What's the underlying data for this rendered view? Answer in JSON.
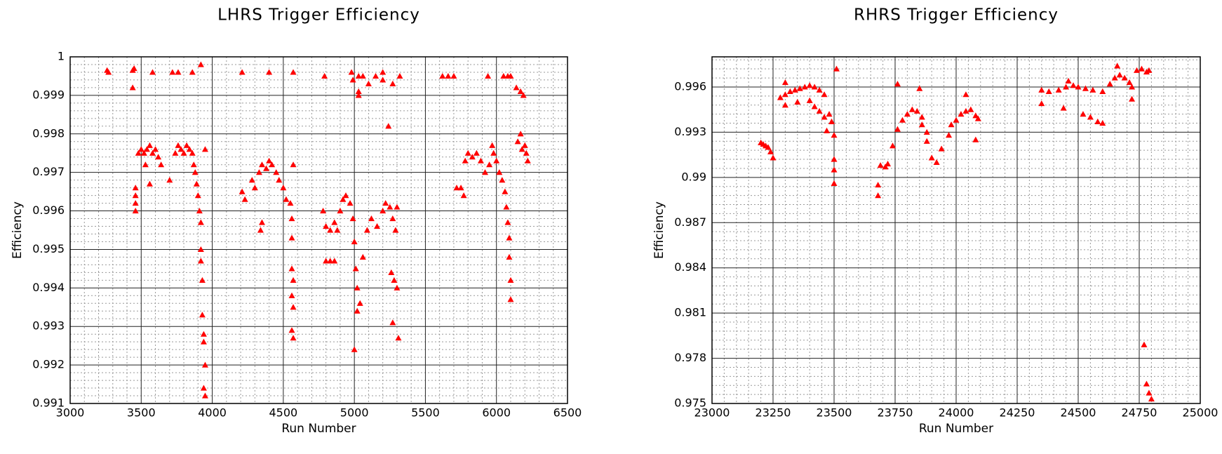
{
  "chart_data": [
    {
      "type": "scatter",
      "title": "LHRS Trigger Efficiency",
      "x_label": "Run Number",
      "y_label": "Efficiency",
      "color": "#ff0000",
      "marker": "triangle",
      "grid": true,
      "minor_divisions": 5,
      "xlim": [
        3000,
        6500
      ],
      "xticks": [
        3000,
        3500,
        4000,
        4500,
        5000,
        5500,
        6000,
        6500
      ],
      "ylim": [
        0.991,
        1
      ],
      "yticks": [
        0.991,
        0.992,
        0.993,
        0.994,
        0.995,
        0.996,
        0.997,
        0.998,
        0.999,
        1
      ],
      "x": [
        3260,
        3270,
        3440,
        3450,
        3440,
        3580,
        3720,
        3760,
        3860,
        3920,
        4210,
        4400,
        4570,
        4790,
        4980,
        4990,
        5030,
        5030,
        5030,
        5060,
        5100,
        5150,
        5200,
        5200,
        5270,
        5320,
        5620,
        5660,
        5700,
        5940,
        6050,
        6080,
        6100,
        6140,
        6170,
        6190,
        5240,
        3480,
        3500,
        3520,
        3540,
        3560,
        3580,
        3600,
        3620,
        3640,
        3530,
        3560,
        3460,
        3460,
        3460,
        3460,
        3700,
        3740,
        3760,
        3780,
        3800,
        3820,
        3840,
        3860,
        3870,
        3880,
        3890,
        3900,
        3910,
        3920,
        3920,
        3920,
        3930,
        3930,
        3940,
        3940,
        3950,
        3940,
        3950,
        3950,
        4210,
        4230,
        4280,
        4300,
        4330,
        4350,
        4380,
        4400,
        4420,
        4450,
        4470,
        4350,
        4340,
        4500,
        4520,
        4550,
        4560,
        4570,
        4560,
        4560,
        4570,
        4560,
        4570,
        4560,
        4570,
        4780,
        4800,
        4830,
        4860,
        4880,
        4800,
        4830,
        4860,
        4900,
        4920,
        4940,
        4970,
        4990,
        5000,
        5010,
        5020,
        5020,
        5040,
        5000,
        5060,
        5090,
        5120,
        5160,
        5200,
        5220,
        5250,
        5270,
        5290,
        5300,
        5260,
        5280,
        5300,
        5270,
        5310,
        5720,
        5750,
        5780,
        5800,
        5830,
        5860,
        5890,
        5920,
        5950,
        5970,
        5980,
        6000,
        6020,
        6040,
        6060,
        6070,
        6080,
        6090,
        6090,
        6100,
        6100,
        6150,
        6170,
        6180,
        6200,
        6210,
        6220,
        5770
      ],
      "values": [
        0.99965,
        0.9996,
        0.99965,
        0.9997,
        0.9992,
        0.9996,
        0.9996,
        0.9996,
        0.9996,
        0.9998,
        0.9996,
        0.9996,
        0.9996,
        0.9995,
        0.9996,
        0.9994,
        0.9995,
        0.9991,
        0.999,
        0.9995,
        0.9993,
        0.9995,
        0.9996,
        0.9994,
        0.9993,
        0.9995,
        0.9995,
        0.9995,
        0.9995,
        0.9995,
        0.9995,
        0.9995,
        0.9995,
        0.9992,
        0.9991,
        0.999,
        0.9982,
        0.9975,
        0.9976,
        0.9975,
        0.9976,
        0.9977,
        0.9975,
        0.9976,
        0.9974,
        0.9972,
        0.9972,
        0.9967,
        0.9966,
        0.9964,
        0.9962,
        0.996,
        0.9968,
        0.9975,
        0.9977,
        0.9976,
        0.9975,
        0.9977,
        0.9976,
        0.9975,
        0.9972,
        0.997,
        0.9967,
        0.9964,
        0.996,
        0.9957,
        0.995,
        0.9947,
        0.9942,
        0.9933,
        0.9928,
        0.9926,
        0.992,
        0.9914,
        0.9912,
        0.9976,
        0.9965,
        0.9963,
        0.9968,
        0.9966,
        0.997,
        0.9972,
        0.9971,
        0.9973,
        0.9972,
        0.997,
        0.9968,
        0.9957,
        0.9955,
        0.9966,
        0.9963,
        0.9962,
        0.9958,
        0.9972,
        0.9953,
        0.9945,
        0.9942,
        0.9938,
        0.9935,
        0.9929,
        0.9927,
        0.996,
        0.9956,
        0.9955,
        0.9957,
        0.9955,
        0.9947,
        0.9947,
        0.9947,
        0.996,
        0.9963,
        0.9964,
        0.9962,
        0.9958,
        0.9952,
        0.9945,
        0.994,
        0.9934,
        0.9936,
        0.9924,
        0.9948,
        0.9955,
        0.9958,
        0.9956,
        0.996,
        0.9962,
        0.9961,
        0.9958,
        0.9955,
        0.9961,
        0.9944,
        0.9942,
        0.994,
        0.9931,
        0.9927,
        0.9966,
        0.9966,
        0.9973,
        0.9975,
        0.9974,
        0.9975,
        0.9973,
        0.997,
        0.9972,
        0.9977,
        0.9975,
        0.9973,
        0.997,
        0.9968,
        0.9965,
        0.9961,
        0.9957,
        0.9953,
        0.9948,
        0.9942,
        0.9937,
        0.9978,
        0.998,
        0.9976,
        0.9977,
        0.9975,
        0.9973,
        0.9964
      ]
    },
    {
      "type": "scatter",
      "title": "RHRS Trigger Efficiency",
      "x_label": "Run Number",
      "y_label": "Efficiency",
      "color": "#ff0000",
      "marker": "triangle",
      "grid": true,
      "minor_divisions": 5,
      "xlim": [
        23000,
        25000
      ],
      "xticks": [
        23000,
        23250,
        23500,
        23750,
        24000,
        24250,
        24500,
        24750,
        25000
      ],
      "ylim": [
        0.975,
        0.998
      ],
      "yticks": [
        0.975,
        0.978,
        0.981,
        0.984,
        0.987,
        0.99,
        0.993,
        0.996
      ],
      "x": [
        23200,
        23210,
        23220,
        23230,
        23240,
        23250,
        23280,
        23300,
        23320,
        23340,
        23360,
        23380,
        23400,
        23420,
        23440,
        23300,
        23350,
        23400,
        23420,
        23440,
        23460,
        23480,
        23490,
        23470,
        23500,
        23500,
        23500,
        23500,
        23510,
        23460,
        23300,
        23680,
        23680,
        23690,
        23710,
        23720,
        23740,
        23760,
        23780,
        23800,
        23820,
        23840,
        23860,
        23860,
        23880,
        23880,
        23900,
        23920,
        23940,
        23760,
        23850,
        23970,
        23980,
        24000,
        24020,
        24040,
        24060,
        24080,
        24090,
        24040,
        24080,
        24350,
        24380,
        24350,
        24420,
        24450,
        24480,
        24500,
        24530,
        24560,
        24600,
        24440,
        24520,
        24550,
        24580,
        24600,
        24460,
        24630,
        24650,
        24660,
        24670,
        24690,
        24710,
        24720,
        24720,
        24740,
        24760,
        24780,
        24790,
        24770,
        24780,
        24790,
        24800
      ],
      "values": [
        0.9923,
        0.9922,
        0.9921,
        0.992,
        0.9917,
        0.9913,
        0.9953,
        0.9955,
        0.9957,
        0.9958,
        0.9959,
        0.996,
        0.9961,
        0.996,
        0.9958,
        0.9948,
        0.995,
        0.9951,
        0.9947,
        0.9944,
        0.994,
        0.9942,
        0.9937,
        0.9931,
        0.9928,
        0.9912,
        0.9905,
        0.9896,
        0.9972,
        0.9955,
        0.9963,
        0.9895,
        0.9888,
        0.9908,
        0.9907,
        0.9909,
        0.9921,
        0.9932,
        0.9938,
        0.9942,
        0.9945,
        0.9944,
        0.994,
        0.9935,
        0.993,
        0.9924,
        0.9913,
        0.991,
        0.9919,
        0.9962,
        0.9959,
        0.9928,
        0.9935,
        0.9938,
        0.9942,
        0.9944,
        0.9945,
        0.9941,
        0.9939,
        0.9955,
        0.9925,
        0.9958,
        0.9957,
        0.9949,
        0.9958,
        0.996,
        0.9961,
        0.996,
        0.9959,
        0.9958,
        0.9957,
        0.9946,
        0.9942,
        0.994,
        0.9937,
        0.9936,
        0.9964,
        0.9962,
        0.9966,
        0.9974,
        0.9968,
        0.9966,
        0.9963,
        0.996,
        0.9952,
        0.9971,
        0.9972,
        0.997,
        0.9971,
        0.9789,
        0.9763,
        0.9757,
        0.9753
      ]
    }
  ]
}
